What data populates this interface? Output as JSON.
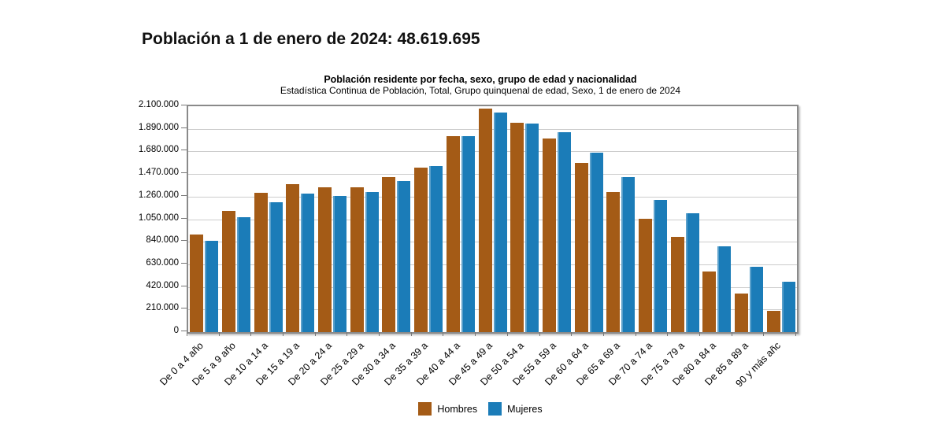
{
  "page": {
    "title": "Población a 1 de enero de 2024: 48.619.695"
  },
  "chart": {
    "title": "Población residente por fecha, sexo, grupo de edad y nacionalidad",
    "subtitle": "Estadística Continua de Población, Total, Grupo quinquenal de edad, Sexo, 1 de enero de 2024"
  },
  "chart_data": {
    "type": "bar",
    "title": "Población residente por fecha, sexo, grupo de edad y nacionalidad",
    "subtitle": "Estadística Continua de Población, Total, Grupo quinquenal de edad, Sexo, 1 de enero de 2024",
    "categories": [
      "De 0 a 4 año",
      "De 5 a 9 año",
      "De 10 a 14 a",
      "De 15 a 19 a",
      "De 20 a 24 a",
      "De 25 a 29 a",
      "De 30 a 34 a",
      "De 35 a 39 a",
      "De 40 a 44 a",
      "De 45 a 49 a",
      "De 50 a 54 a",
      "De 55 a 59 a",
      "De 60 a 64 a",
      "De 65 a 69 a",
      "De 70 a 74 a",
      "De 75 a 79 a",
      "De 80 a 84 a",
      "De 85 a 89 a",
      "90 y más añc"
    ],
    "series": [
      {
        "name": "Hombres",
        "color": "#A45B16",
        "values": [
          905000,
          1130000,
          1295000,
          1375000,
          1345000,
          1345000,
          1440000,
          1530000,
          1825000,
          2080000,
          1945000,
          1800000,
          1570000,
          1305000,
          1055000,
          885000,
          565000,
          355000,
          200000
        ]
      },
      {
        "name": "Mujeres",
        "color": "#1B7CB8",
        "values": [
          850000,
          1070000,
          1210000,
          1290000,
          1265000,
          1300000,
          1405000,
          1545000,
          1820000,
          2040000,
          1940000,
          1860000,
          1670000,
          1445000,
          1230000,
          1105000,
          795000,
          610000,
          465000
        ]
      }
    ],
    "ylim": [
      0,
      2100000
    ],
    "ytick_interval": 210000,
    "ytick_labels_top_to_bottom": [
      "2.100.000",
      "1.890.000",
      "1.680.000",
      "1.470.000",
      "1.260.000",
      "1.050.000",
      "840.000",
      "630.000",
      "420.000",
      "210.000",
      "0"
    ],
    "grid": true,
    "legend_position": "bottom"
  }
}
